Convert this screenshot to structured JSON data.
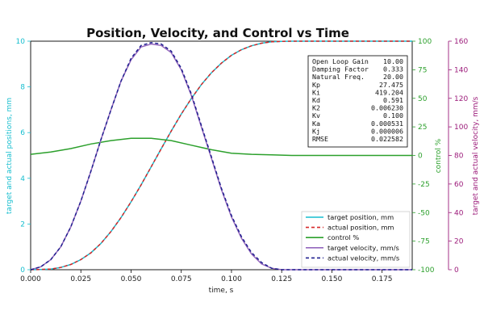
{
  "chart_data": {
    "type": "line",
    "title": "Position, Velocity, and Control vs Time",
    "xlabel": "time, s",
    "ylabel_left": "target and actual positions, mm",
    "ylabel_right_inner": "control %",
    "ylabel_right_outer": "target and actual velocity, mm/s",
    "xlim": [
      0,
      0.19
    ],
    "ylim_left": [
      0,
      10
    ],
    "ylim_right_inner": [
      -100,
      100
    ],
    "ylim_right_outer": [
      0,
      160
    ],
    "x_ticks": [
      "0.000",
      "0.025",
      "0.050",
      "0.075",
      "0.100",
      "0.125",
      "0.150",
      "0.175"
    ],
    "y_left_ticks": [
      "0",
      "2",
      "4",
      "6",
      "8",
      "10"
    ],
    "y_right_inner_ticks": [
      "-100",
      "-75",
      "-50",
      "-25",
      "0",
      "25",
      "50",
      "75",
      "100"
    ],
    "y_right_outer_ticks": [
      "0",
      "20",
      "40",
      "60",
      "80",
      "100",
      "120",
      "140",
      "160"
    ],
    "colors": {
      "left_axis": "#17becf",
      "right_inner_axis": "#2ca02c",
      "right_outer_axis": "#9c1b7a"
    },
    "series": [
      {
        "name": "target position, mm",
        "axis": "left",
        "color": "#17becf",
        "style": "solid",
        "x": [
          0,
          0.005,
          0.01,
          0.015,
          0.02,
          0.025,
          0.03,
          0.035,
          0.04,
          0.045,
          0.05,
          0.055,
          0.06,
          0.065,
          0.07,
          0.075,
          0.08,
          0.085,
          0.09,
          0.095,
          0.1,
          0.105,
          0.11,
          0.115,
          0.12,
          0.125,
          0.13,
          0.15,
          0.19
        ],
        "y": [
          0,
          0.01,
          0.03,
          0.1,
          0.23,
          0.44,
          0.74,
          1.15,
          1.67,
          2.28,
          2.97,
          3.71,
          4.5,
          5.29,
          6.07,
          6.81,
          7.49,
          8.1,
          8.62,
          9.04,
          9.38,
          9.63,
          9.8,
          9.91,
          9.97,
          9.99,
          10,
          10,
          10
        ]
      },
      {
        "name": "actual position, mm",
        "axis": "left",
        "color": "#d62728",
        "style": "dashed",
        "x": [
          0,
          0.005,
          0.01,
          0.015,
          0.02,
          0.025,
          0.03,
          0.035,
          0.04,
          0.045,
          0.05,
          0.055,
          0.06,
          0.065,
          0.07,
          0.075,
          0.08,
          0.085,
          0.09,
          0.095,
          0.1,
          0.105,
          0.11,
          0.115,
          0.12,
          0.125,
          0.13,
          0.15,
          0.19
        ],
        "y": [
          0,
          0.01,
          0.03,
          0.1,
          0.23,
          0.44,
          0.74,
          1.15,
          1.67,
          2.28,
          2.97,
          3.71,
          4.5,
          5.29,
          6.07,
          6.81,
          7.49,
          8.1,
          8.62,
          9.04,
          9.38,
          9.63,
          9.8,
          9.91,
          9.97,
          9.99,
          10,
          10,
          10
        ]
      },
      {
        "name": "control %",
        "axis": "right_inner",
        "color": "#2ca02c",
        "style": "solid",
        "x": [
          0,
          0.01,
          0.02,
          0.03,
          0.04,
          0.05,
          0.06,
          0.07,
          0.08,
          0.09,
          0.1,
          0.11,
          0.12,
          0.13,
          0.15,
          0.19
        ],
        "y": [
          1,
          3,
          6,
          10,
          13,
          15,
          15,
          13,
          9,
          5,
          2,
          1,
          0.5,
          0,
          0,
          0
        ]
      },
      {
        "name": "target velocity, mm/s",
        "axis": "right_outer",
        "color": "#9467bd",
        "style": "solid",
        "x": [
          0,
          0.005,
          0.01,
          0.015,
          0.02,
          0.025,
          0.03,
          0.035,
          0.04,
          0.045,
          0.05,
          0.055,
          0.06,
          0.065,
          0.07,
          0.075,
          0.08,
          0.085,
          0.09,
          0.095,
          0.1,
          0.105,
          0.11,
          0.115,
          0.12,
          0.125,
          0.13,
          0.15,
          0.19
        ],
        "y": [
          0,
          2,
          7,
          16,
          30,
          48,
          69,
          91,
          112,
          132,
          147,
          156,
          158,
          157,
          152,
          140,
          122,
          100,
          78,
          56,
          37,
          22,
          11,
          4,
          1,
          0,
          0,
          0,
          0
        ]
      },
      {
        "name": "actual velocity, mm/s",
        "axis": "right_outer",
        "color": "#1f1f8f",
        "style": "dashed",
        "x": [
          0,
          0.005,
          0.01,
          0.015,
          0.02,
          0.025,
          0.03,
          0.035,
          0.04,
          0.045,
          0.05,
          0.055,
          0.06,
          0.065,
          0.07,
          0.075,
          0.08,
          0.085,
          0.09,
          0.095,
          0.1,
          0.105,
          0.11,
          0.115,
          0.12,
          0.125,
          0.13,
          0.15,
          0.19
        ],
        "y": [
          0,
          2,
          7,
          16,
          30,
          48,
          69,
          91,
          112,
          132,
          148,
          157,
          159,
          158,
          153,
          141,
          123,
          101,
          79,
          57,
          38,
          23,
          12,
          5,
          1,
          0,
          0,
          0,
          0
        ]
      }
    ],
    "legend": {
      "placement": "lower-right",
      "entries": [
        {
          "label": "target position, mm",
          "color": "#17becf",
          "style": "solid"
        },
        {
          "label": "actual position, mm",
          "color": "#d62728",
          "style": "dashed"
        },
        {
          "label": "control %",
          "color": "#2ca02c",
          "style": "solid"
        },
        {
          "label": "target velocity, mm/s",
          "color": "#9467bd",
          "style": "solid"
        },
        {
          "label": "actual velocity, mm/s",
          "color": "#1f1f8f",
          "style": "dashed"
        }
      ]
    },
    "parameters_box": {
      "placement": "top-right",
      "rows": [
        {
          "key": "Open Loop Gain",
          "value": "10.00"
        },
        {
          "key": "Damping Factor",
          "value": "0.333"
        },
        {
          "key": "Natural Freq.",
          "value": "20.00"
        },
        {
          "key": "Kp",
          "value": "27.475"
        },
        {
          "key": "Ki",
          "value": "419.204"
        },
        {
          "key": "Kd",
          "value": "0.591"
        },
        {
          "key": "K2",
          "value": "0.006230"
        },
        {
          "key": "Kv",
          "value": "0.100"
        },
        {
          "key": "Ka",
          "value": "0.000531"
        },
        {
          "key": "Kj",
          "value": "0.000006"
        },
        {
          "key": "RMSE",
          "value": "0.022582"
        }
      ]
    },
    "grid": false
  }
}
